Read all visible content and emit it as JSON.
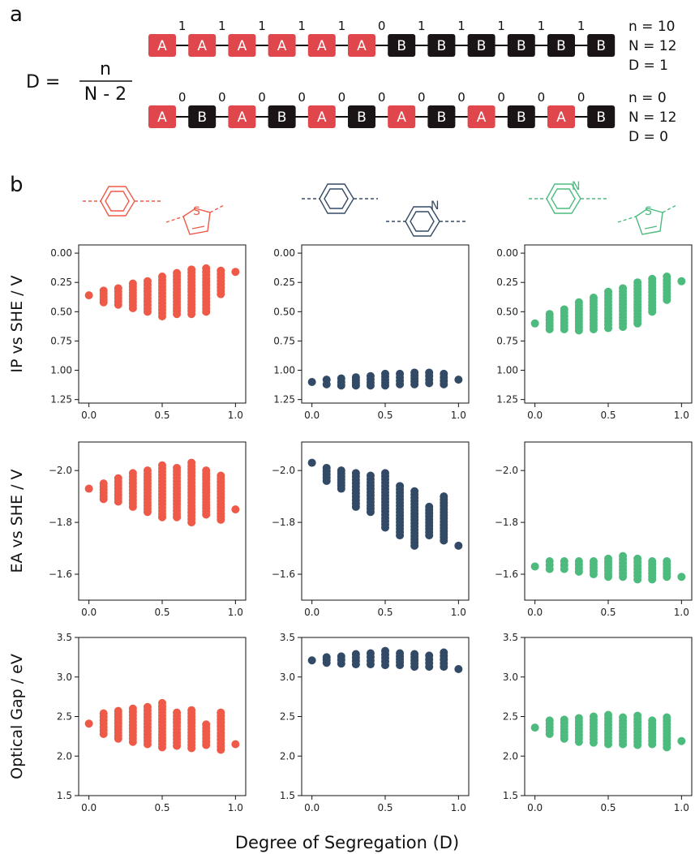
{
  "panel_a": {
    "letter": "a",
    "equation": {
      "lhs": "D =",
      "numerator": "n",
      "denominator": "N - 2"
    },
    "chains": [
      {
        "units": [
          "A",
          "A",
          "A",
          "A",
          "A",
          "A",
          "B",
          "B",
          "B",
          "B",
          "B",
          "B"
        ],
        "bonds": [
          "1",
          "1",
          "1",
          "1",
          "1",
          "0",
          "1",
          "1",
          "1",
          "1",
          "1"
        ],
        "params": [
          "n = 10",
          "N = 12",
          "D = 1"
        ]
      },
      {
        "units": [
          "A",
          "B",
          "A",
          "B",
          "A",
          "B",
          "A",
          "B",
          "A",
          "B",
          "A",
          "B"
        ],
        "bonds": [
          "0",
          "0",
          "0",
          "0",
          "0",
          "0",
          "0",
          "0",
          "0",
          "0",
          "0"
        ],
        "params": [
          "n = 0",
          "N = 12",
          "D = 0"
        ]
      }
    ]
  },
  "panel_b": {
    "letter": "b"
  },
  "colors": {
    "A": "#e0474c",
    "B": "#1a1416",
    "red": "#ef5a48",
    "navy": "#334a66",
    "green": "#4cbb7d"
  },
  "icons": [
    [
      "benzene-ring-icon",
      "thiophene-ring-icon"
    ],
    [
      "benzene-ring-icon",
      "pyridine-ring-icon"
    ],
    [
      "pyridine-ring-icon",
      "thiophene-ring-icon"
    ]
  ],
  "icon_labels": {
    "col1": {
      "thiophene": "S"
    },
    "col2": {
      "pyridine": "N"
    },
    "col3": {
      "pyridine": "N",
      "thiophene": "S"
    }
  },
  "chart_data": {
    "type": "scatter",
    "xlabel": "Degree of Segregation (D)",
    "x_ticks": [
      "0.0",
      "0.5",
      "1.0"
    ],
    "xlim": [
      -0.07,
      1.07
    ],
    "x": [
      0.0,
      0.1,
      0.2,
      0.3,
      0.4,
      0.5,
      0.6,
      0.7,
      0.8,
      0.9,
      1.0
    ],
    "rows": [
      {
        "ylabel": "IP vs SHE / V",
        "ylim": [
          1.28,
          -0.07
        ],
        "inverted": true,
        "y_ticks": [
          "0.00",
          "0.25",
          "0.50",
          "0.75",
          "1.00",
          "1.25"
        ],
        "y_tick_values": [
          0,
          0.25,
          0.5,
          0.75,
          1,
          1.25
        ]
      },
      {
        "ylabel": "EA vs SHE / V",
        "ylim": [
          -1.5,
          -2.11
        ],
        "inverted": false,
        "y_ticks": [
          "−2.0",
          "−1.8",
          "−1.6"
        ],
        "y_tick_values": [
          -2.0,
          -1.8,
          -1.6
        ]
      },
      {
        "ylabel": "Optical Gap / eV",
        "ylim": [
          1.5,
          3.5
        ],
        "inverted": false,
        "y_ticks": [
          "1.5",
          "2.0",
          "2.5",
          "3.0",
          "3.5"
        ],
        "y_tick_values": [
          1.5,
          2.0,
          2.5,
          3.0,
          3.5
        ]
      }
    ],
    "series": [
      {
        "row": 0,
        "col": 0,
        "color": "red",
        "values": [
          [
            0.36,
            0.36
          ],
          [
            0.32,
            0.42
          ],
          [
            0.3,
            0.44
          ],
          [
            0.26,
            0.47
          ],
          [
            0.24,
            0.5
          ],
          [
            0.2,
            0.54
          ],
          [
            0.17,
            0.52
          ],
          [
            0.14,
            0.52
          ],
          [
            0.13,
            0.5
          ],
          [
            0.15,
            0.35
          ],
          [
            0.16,
            0.16
          ]
        ]
      },
      {
        "row": 0,
        "col": 1,
        "color": "navy",
        "values": [
          [
            1.1,
            1.1
          ],
          [
            1.08,
            1.12
          ],
          [
            1.07,
            1.13
          ],
          [
            1.06,
            1.13
          ],
          [
            1.05,
            1.13
          ],
          [
            1.03,
            1.13
          ],
          [
            1.03,
            1.12
          ],
          [
            1.02,
            1.12
          ],
          [
            1.02,
            1.11
          ],
          [
            1.03,
            1.12
          ],
          [
            1.08,
            1.08
          ]
        ]
      },
      {
        "row": 0,
        "col": 2,
        "color": "green",
        "values": [
          [
            0.6,
            0.6
          ],
          [
            0.52,
            0.65
          ],
          [
            0.48,
            0.65
          ],
          [
            0.42,
            0.66
          ],
          [
            0.38,
            0.65
          ],
          [
            0.33,
            0.64
          ],
          [
            0.3,
            0.63
          ],
          [
            0.25,
            0.6
          ],
          [
            0.22,
            0.5
          ],
          [
            0.2,
            0.4
          ],
          [
            0.24,
            0.24
          ]
        ]
      },
      {
        "row": 1,
        "col": 0,
        "color": "red",
        "values": [
          [
            -1.93,
            -1.93
          ],
          [
            -1.95,
            -1.89
          ],
          [
            -1.97,
            -1.88
          ],
          [
            -1.99,
            -1.86
          ],
          [
            -2.0,
            -1.84
          ],
          [
            -2.02,
            -1.82
          ],
          [
            -2.01,
            -1.82
          ],
          [
            -2.03,
            -1.8
          ],
          [
            -2.0,
            -1.83
          ],
          [
            -1.98,
            -1.81
          ],
          [
            -1.85,
            -1.85
          ]
        ]
      },
      {
        "row": 1,
        "col": 1,
        "color": "navy",
        "values": [
          [
            -2.03,
            -2.03
          ],
          [
            -2.01,
            -1.96
          ],
          [
            -2.0,
            -1.93
          ],
          [
            -1.99,
            -1.86
          ],
          [
            -1.98,
            -1.84
          ],
          [
            -1.99,
            -1.78
          ],
          [
            -1.94,
            -1.75
          ],
          [
            -1.92,
            -1.71
          ],
          [
            -1.86,
            -1.75
          ],
          [
            -1.9,
            -1.73
          ],
          [
            -1.71,
            -1.71
          ]
        ]
      },
      {
        "row": 1,
        "col": 2,
        "color": "green",
        "values": [
          [
            -1.63,
            -1.63
          ],
          [
            -1.65,
            -1.62
          ],
          [
            -1.65,
            -1.62
          ],
          [
            -1.65,
            -1.61
          ],
          [
            -1.65,
            -1.6
          ],
          [
            -1.66,
            -1.59
          ],
          [
            -1.67,
            -1.59
          ],
          [
            -1.66,
            -1.58
          ],
          [
            -1.65,
            -1.58
          ],
          [
            -1.65,
            -1.59
          ],
          [
            -1.59,
            -1.59
          ]
        ]
      },
      {
        "row": 2,
        "col": 0,
        "color": "red",
        "values": [
          [
            2.41,
            2.41
          ],
          [
            2.28,
            2.54
          ],
          [
            2.22,
            2.57
          ],
          [
            2.18,
            2.6
          ],
          [
            2.15,
            2.62
          ],
          [
            2.11,
            2.67
          ],
          [
            2.13,
            2.55
          ],
          [
            2.1,
            2.58
          ],
          [
            2.14,
            2.4
          ],
          [
            2.08,
            2.55
          ],
          [
            2.15,
            2.15
          ]
        ]
      },
      {
        "row": 2,
        "col": 1,
        "color": "navy",
        "values": [
          [
            3.21,
            3.21
          ],
          [
            3.18,
            3.25
          ],
          [
            3.17,
            3.26
          ],
          [
            3.16,
            3.29
          ],
          [
            3.16,
            3.3
          ],
          [
            3.15,
            3.33
          ],
          [
            3.15,
            3.3
          ],
          [
            3.13,
            3.29
          ],
          [
            3.13,
            3.27
          ],
          [
            3.13,
            3.31
          ],
          [
            3.1,
            3.1
          ]
        ]
      },
      {
        "row": 2,
        "col": 2,
        "color": "green",
        "values": [
          [
            2.36,
            2.36
          ],
          [
            2.28,
            2.45
          ],
          [
            2.22,
            2.46
          ],
          [
            2.18,
            2.48
          ],
          [
            2.17,
            2.5
          ],
          [
            2.15,
            2.52
          ],
          [
            2.15,
            2.49
          ],
          [
            2.14,
            2.51
          ],
          [
            2.15,
            2.45
          ],
          [
            2.11,
            2.49
          ],
          [
            2.19,
            2.19
          ]
        ]
      }
    ]
  }
}
